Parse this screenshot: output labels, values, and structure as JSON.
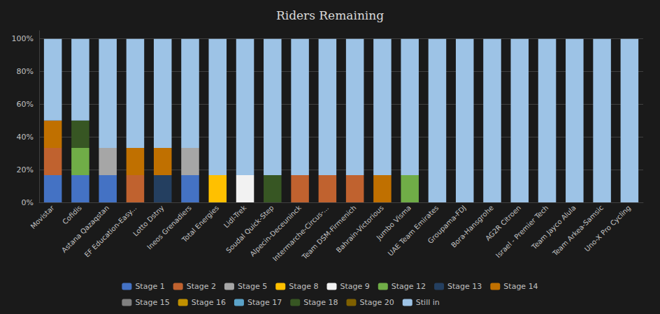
{
  "chart_data": {
    "type": "bar",
    "title": "Riders Remaining",
    "stacked": true,
    "grid": true,
    "legend": "bottom",
    "categories": [
      "Movistar",
      "Cofidis",
      "Astana Qazaqstan",
      "EF Education-Easy...",
      "Lotto Dstny",
      "Ineos Grenadiers",
      "Total Energies",
      "Lidl-Trek",
      "Soudal Quick-Step",
      "Alpecin-Deceuninck",
      "Intermarche-Circus-...",
      "Team DSM-Firmenich",
      "Bahrain-Victorious",
      "Jumbo Visma",
      "UAE Team Emirates",
      "Groupama-FDJ",
      "Bora-Hansgrohe",
      "AG2R Citroen",
      "Israel - Premier Tech",
      "Team Jayco Alula",
      "Team Arkea-Samsic",
      "Uno-X Pro Cycling"
    ],
    "ylim": [
      0,
      105
    ],
    "yticks": [
      {
        "value": 0,
        "label": "0%"
      },
      {
        "value": 20,
        "label": "20%"
      },
      {
        "value": 40,
        "label": "40%"
      },
      {
        "value": 60,
        "label": "60%"
      },
      {
        "value": 80,
        "label": "80%"
      },
      {
        "value": 100,
        "label": "100%"
      }
    ],
    "series": [
      {
        "name": "Stage 1",
        "color": "#4472C4",
        "values": [
          16.67,
          16.67,
          16.67,
          0,
          0,
          16.67,
          0,
          0,
          0,
          0,
          0,
          0,
          0,
          0,
          0,
          0,
          0,
          0,
          0,
          0,
          0,
          0
        ]
      },
      {
        "name": "Stage 2",
        "color": "#C0622F",
        "values": [
          16.67,
          0,
          0,
          16.67,
          0,
          0,
          0,
          0,
          0,
          16.67,
          16.67,
          16.67,
          0,
          0,
          0,
          0,
          0,
          0,
          0,
          0,
          0,
          0
        ]
      },
      {
        "name": "Stage 5",
        "color": "#A6A6A6",
        "values": [
          0,
          0,
          16.67,
          0,
          0,
          16.67,
          0,
          0,
          0,
          0,
          0,
          0,
          0,
          0,
          0,
          0,
          0,
          0,
          0,
          0,
          0,
          0
        ]
      },
      {
        "name": "Stage 8",
        "color": "#FFC000",
        "values": [
          0,
          0,
          0,
          0,
          0,
          0,
          16.67,
          0,
          0,
          0,
          0,
          0,
          0,
          0,
          0,
          0,
          0,
          0,
          0,
          0,
          0,
          0
        ]
      },
      {
        "name": "Stage 9",
        "color": "#F2F2F2",
        "values": [
          0,
          0,
          0,
          0,
          0,
          0,
          0,
          16.67,
          0,
          0,
          0,
          0,
          0,
          0,
          0,
          0,
          0,
          0,
          0,
          0,
          0,
          0
        ]
      },
      {
        "name": "Stage 12",
        "color": "#70AD47",
        "values": [
          0,
          16.67,
          0,
          0,
          0,
          0,
          0,
          0,
          0,
          0,
          0,
          0,
          0,
          16.67,
          0,
          0,
          0,
          0,
          0,
          0,
          0,
          0
        ]
      },
      {
        "name": "Stage 13",
        "color": "#243F60",
        "values": [
          0,
          0,
          0,
          0,
          16.67,
          0,
          0,
          0,
          0,
          0,
          0,
          0,
          0,
          0,
          0,
          0,
          0,
          0,
          0,
          0,
          0,
          0
        ]
      },
      {
        "name": "Stage 14",
        "color": "#C07000",
        "values": [
          16.67,
          0,
          0,
          16.67,
          16.67,
          0,
          0,
          0,
          0,
          0,
          0,
          0,
          16.67,
          0,
          0,
          0,
          0,
          0,
          0,
          0,
          0,
          0
        ]
      },
      {
        "name": "Stage 15",
        "color": "#808080",
        "values": [
          0,
          0,
          0,
          0,
          0,
          0,
          0,
          0,
          0,
          0,
          0,
          0,
          0,
          0,
          0,
          0,
          0,
          0,
          0,
          0,
          0,
          0
        ]
      },
      {
        "name": "Stage 16",
        "color": "#C09000",
        "values": [
          0,
          0,
          0,
          0,
          0,
          0,
          0,
          0,
          0,
          0,
          0,
          0,
          0,
          0,
          0,
          0,
          0,
          0,
          0,
          0,
          0,
          0
        ]
      },
      {
        "name": "Stage 17",
        "color": "#5BA3C9",
        "values": [
          0,
          0,
          0,
          0,
          0,
          0,
          0,
          0,
          0,
          0,
          0,
          0,
          0,
          0,
          0,
          0,
          0,
          0,
          0,
          0,
          0,
          0
        ]
      },
      {
        "name": "Stage 18",
        "color": "#375623",
        "values": [
          0,
          16.67,
          0,
          0,
          0,
          0,
          0,
          0,
          16.67,
          0,
          0,
          0,
          0,
          0,
          0,
          0,
          0,
          0,
          0,
          0,
          0,
          0
        ]
      },
      {
        "name": "Stage 20",
        "color": "#7F6000",
        "values": [
          0,
          0,
          0,
          0,
          0,
          0,
          0,
          0,
          0,
          0,
          0,
          0,
          0,
          0,
          0,
          0,
          0,
          0,
          0,
          0,
          0,
          0
        ]
      },
      {
        "name": "Still in",
        "color": "#9DC3E6",
        "values": [
          50.0,
          50.0,
          66.67,
          66.67,
          66.67,
          66.67,
          83.33,
          83.33,
          83.33,
          83.33,
          83.33,
          83.33,
          83.33,
          83.33,
          100.0,
          100.0,
          100.0,
          100.0,
          100.0,
          100.0,
          100.0,
          100.0
        ]
      }
    ]
  }
}
